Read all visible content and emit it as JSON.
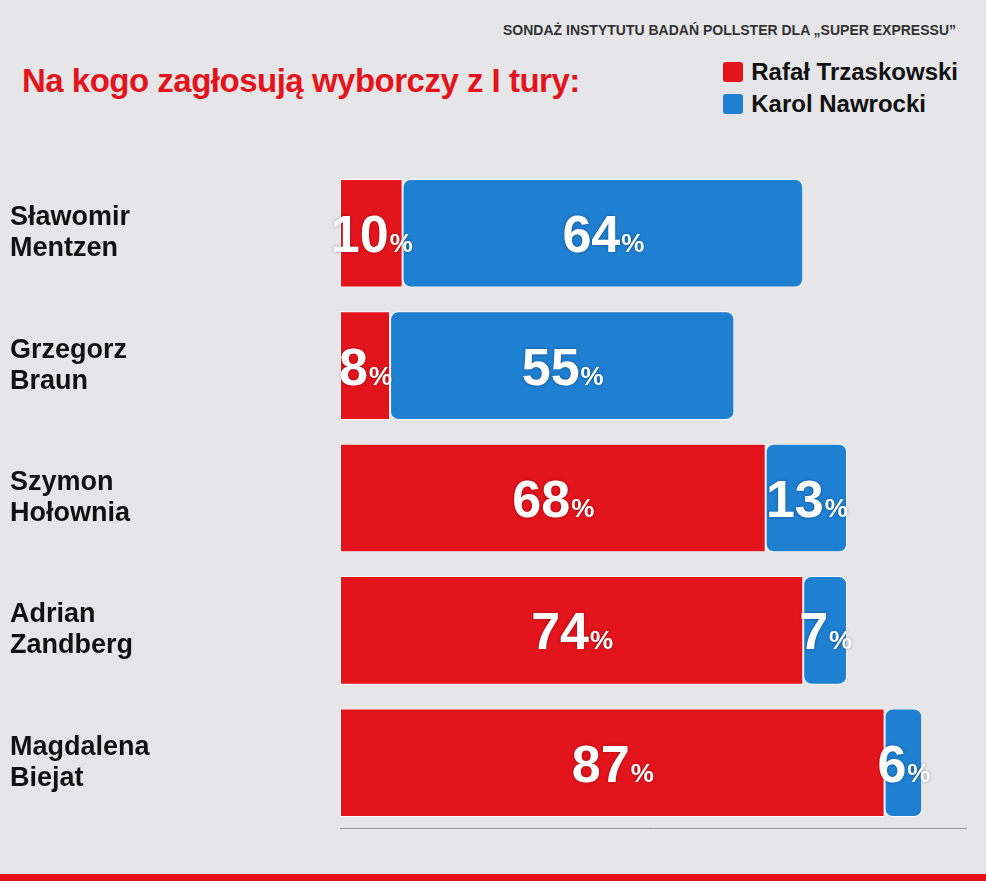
{
  "chart_data": {
    "type": "bar",
    "title": "Na kogo zagłosują wyborczy z I tury:",
    "source": "SONDAŻ INSTYTUTU BADAŃ POLLSTER DLA „SUPER EXPRESSU”",
    "orientation": "horizontal",
    "stacked": true,
    "categories": [
      "Sławomir Mentzen",
      "Grzegorz Braun",
      "Szymon Hołownia",
      "Adrian Zandberg",
      "Magdalena Biejat"
    ],
    "series": [
      {
        "name": "Rafał Trzaskowski",
        "color": "#e3141c",
        "values": [
          10,
          8,
          68,
          74,
          87
        ],
        "value_labels": [
          "10%",
          "8%",
          "68%",
          "74%",
          "87%"
        ]
      },
      {
        "name": "Karol Nawrocki",
        "color": "#1f7fd0",
        "values": [
          64,
          55,
          13,
          7,
          6
        ],
        "value_labels": [
          "64%",
          "55%",
          "13%",
          "7%",
          "6%"
        ]
      }
    ],
    "xlim": [
      0,
      100
    ],
    "data_labels": true,
    "legend": "top-right",
    "tick_labels": "y",
    "grid": false
  }
}
